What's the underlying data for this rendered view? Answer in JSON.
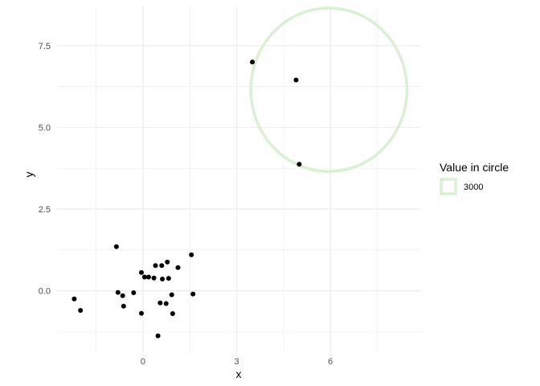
{
  "chart_data": {
    "type": "scatter",
    "xlabel": "x",
    "ylabel": "y",
    "xlim": [
      -2.75,
      8.9
    ],
    "ylim": [
      -1.88,
      8.7
    ],
    "x_ticks": [
      0,
      3,
      6
    ],
    "x_tick_labels": [
      "0",
      "3",
      "6"
    ],
    "y_ticks": [
      0,
      2.5,
      5,
      7.5
    ],
    "y_tick_labels": [
      "0.0",
      "2.5",
      "5.0",
      "7.5"
    ],
    "grid": true,
    "legend_position": "right",
    "points": [
      {
        "x": -2.2,
        "y": -0.25
      },
      {
        "x": -2.0,
        "y": -0.6
      },
      {
        "x": -0.85,
        "y": 1.35
      },
      {
        "x": -0.8,
        "y": -0.05
      },
      {
        "x": -0.65,
        "y": -0.15
      },
      {
        "x": -0.62,
        "y": -0.47
      },
      {
        "x": -0.3,
        "y": -0.06
      },
      {
        "x": -0.05,
        "y": 0.56
      },
      {
        "x": 0.05,
        "y": 0.42
      },
      {
        "x": 0.18,
        "y": 0.42
      },
      {
        "x": 0.35,
        "y": 0.39
      },
      {
        "x": 0.4,
        "y": 0.77
      },
      {
        "x": 0.6,
        "y": 0.77
      },
      {
        "x": 0.62,
        "y": 0.36
      },
      {
        "x": 0.78,
        "y": 0.88
      },
      {
        "x": 0.82,
        "y": 0.38
      },
      {
        "x": 1.12,
        "y": 0.71
      },
      {
        "x": 1.55,
        "y": 1.1
      },
      {
        "x": 0.55,
        "y": -0.37
      },
      {
        "x": 0.74,
        "y": -0.39
      },
      {
        "x": 0.92,
        "y": -0.12
      },
      {
        "x": 1.6,
        "y": -0.1
      },
      {
        "x": -0.05,
        "y": -0.69
      },
      {
        "x": 0.95,
        "y": -0.7
      },
      {
        "x": 0.48,
        "y": -1.38
      },
      {
        "x": 3.5,
        "y": 7.0
      },
      {
        "x": 4.9,
        "y": 6.45
      },
      {
        "x": 5.0,
        "y": 3.87
      }
    ],
    "point_color": "#000000",
    "circles": [
      {
        "cx": 5.95,
        "cy": 6.15,
        "r": 2.5,
        "value": "3000",
        "color": "#d9f0d3"
      }
    ],
    "legend": {
      "title": "Value in circle",
      "entries": [
        {
          "label": "3000",
          "color": "#d9f0d3"
        }
      ]
    }
  }
}
